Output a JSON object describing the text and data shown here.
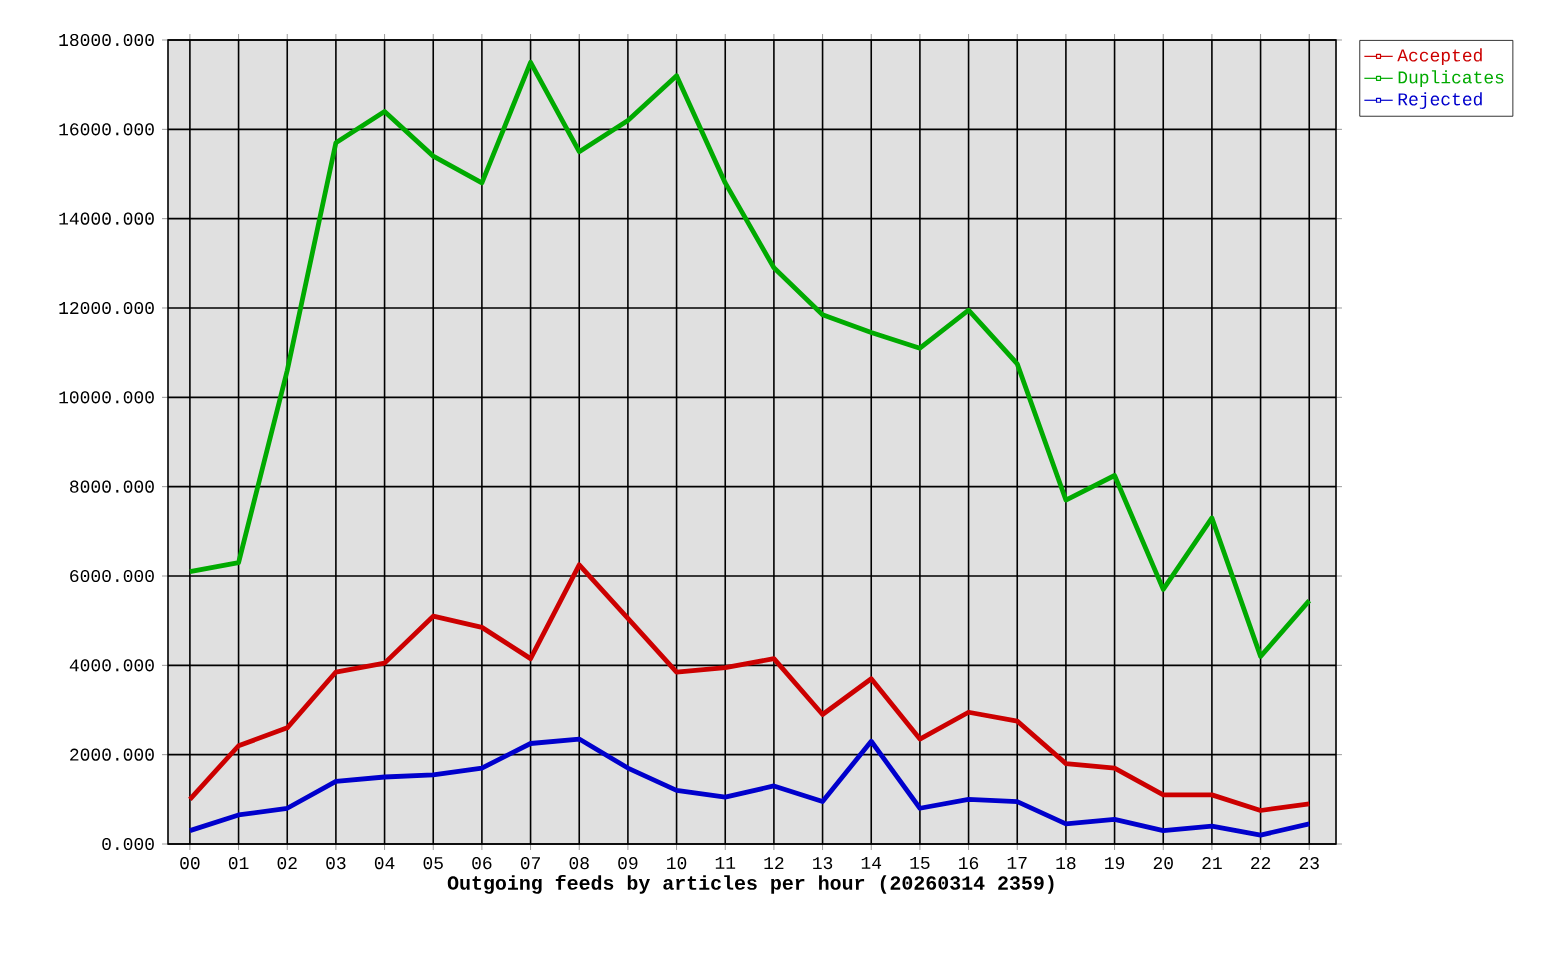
{
  "chart_data": {
    "type": "line",
    "xlabel": "**Outgoing feeds by articles per hour (20260314 2359)**",
    "categories": [
      "00",
      "01",
      "02",
      "03",
      "04",
      "05",
      "06",
      "07",
      "08",
      "09",
      "10",
      "11",
      "12",
      "13",
      "14",
      "15",
      "16",
      "17",
      "18",
      "19",
      "20",
      "21",
      "22",
      "23"
    ],
    "series": [
      {
        "name": "Accepted",
        "color": "#cc0000",
        "values": [
          1000,
          2200,
          2600,
          3850,
          4050,
          5100,
          4850,
          4150,
          6250,
          5050,
          3850,
          3950,
          4150,
          2900,
          3700,
          2350,
          2950,
          2750,
          1800,
          1700,
          1100,
          1100,
          750,
          900
        ]
      },
      {
        "name": "Duplicates",
        "color": "#00aa00",
        "values": [
          6100,
          6300,
          10600,
          15700,
          16400,
          15400,
          14800,
          17500,
          15500,
          16200,
          17200,
          14800,
          12900,
          11850,
          11450,
          11100,
          11950,
          10750,
          7700,
          8250,
          5700,
          7300,
          4200,
          5450
        ]
      },
      {
        "name": "Rejected",
        "color": "#0000cc",
        "values": [
          300,
          650,
          800,
          1400,
          1500,
          1550,
          1700,
          2250,
          2350,
          1700,
          1200,
          1050,
          1300,
          950,
          2300,
          800,
          1000,
          950,
          450,
          550,
          300,
          400,
          200,
          450
        ]
      }
    ],
    "ylim": [
      0,
      18000
    ],
    "yticks": [
      {
        "value": 0,
        "label": "0.000"
      },
      {
        "value": 2000,
        "label": "2000.000"
      },
      {
        "value": 4000,
        "label": "4000.000"
      },
      {
        "value": 6000,
        "label": "6000.000"
      },
      {
        "value": 8000,
        "label": "8000.000"
      },
      {
        "value": 10000,
        "label": "10000.000"
      },
      {
        "value": 12000,
        "label": "12000.000"
      },
      {
        "value": 14000,
        "label": "14000.000"
      },
      {
        "value": 16000,
        "label": "16000.000"
      },
      {
        "value": 18000,
        "label": "18000.000"
      }
    ],
    "grid": true,
    "legend": "top right",
    "marker": "none",
    "line_style": "solid"
  }
}
